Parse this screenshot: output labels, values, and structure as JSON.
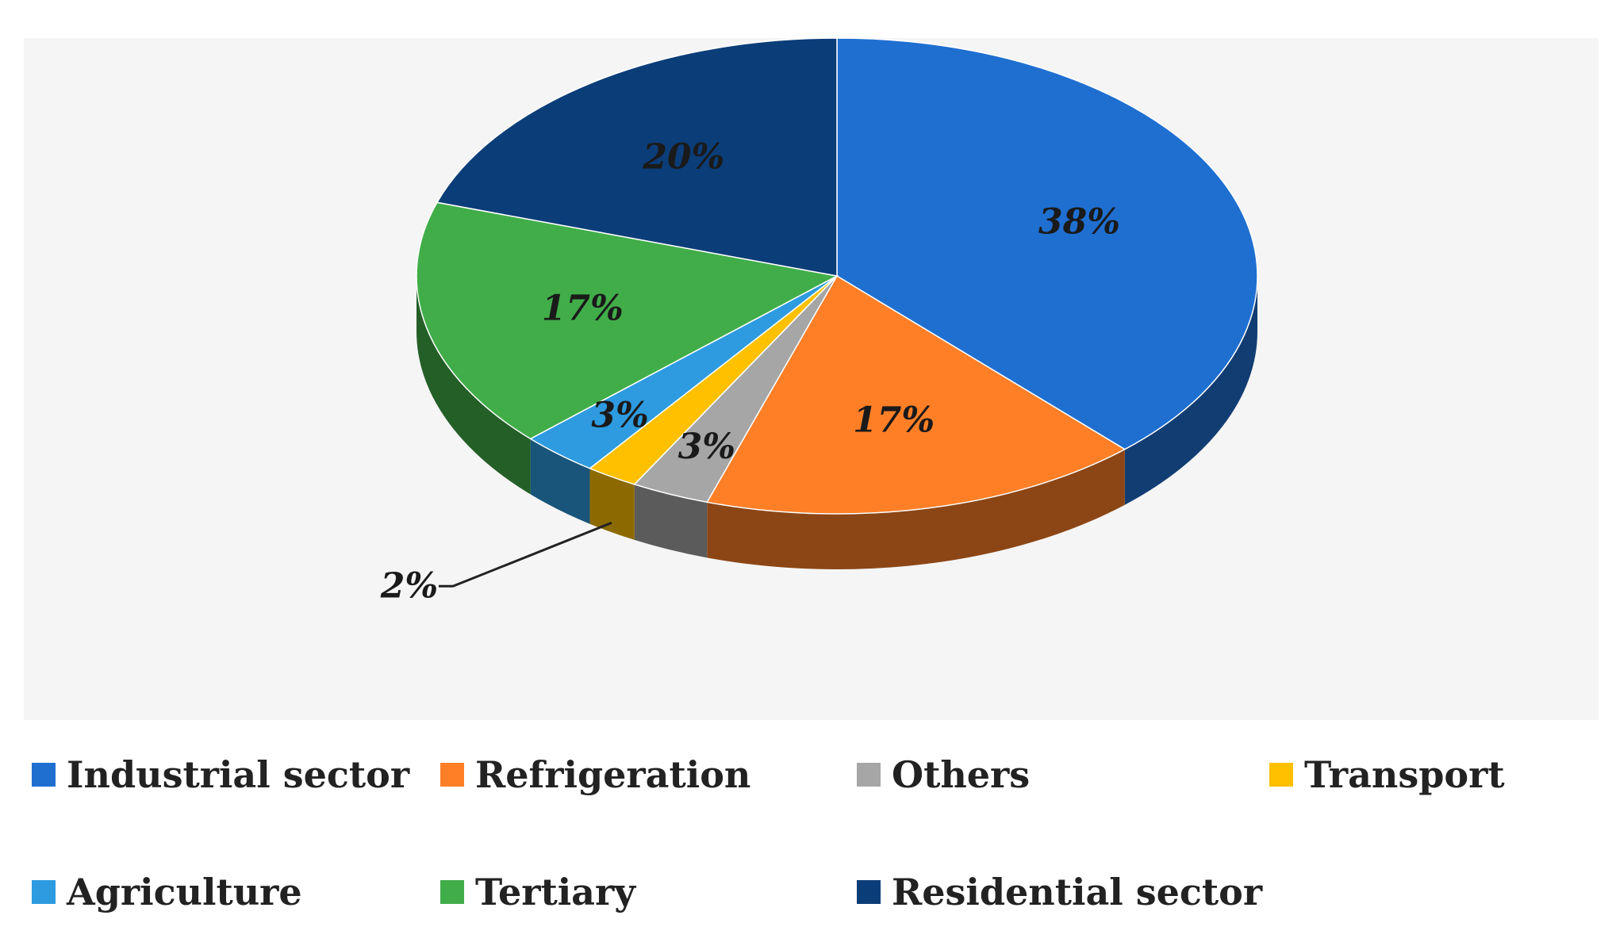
{
  "chart_data": {
    "type": "pie",
    "title": "",
    "categories": [
      "Industrial sector",
      "Refrigeration",
      "Others",
      "Transport",
      "Agriculture",
      "Tertiary",
      "Residential sector"
    ],
    "values": [
      38,
      17,
      3,
      2,
      3,
      17,
      20
    ],
    "data_labels": [
      "38%",
      "17%",
      "3%",
      "2%",
      "3%",
      "17%",
      "20%"
    ],
    "colors": [
      "#1f6fd1",
      "#ff7f27",
      "#a6a6a6",
      "#ffc000",
      "#2e9be0",
      "#41ad49",
      "#0b3d78"
    ],
    "legend_position": "bottom",
    "style": "3d"
  }
}
